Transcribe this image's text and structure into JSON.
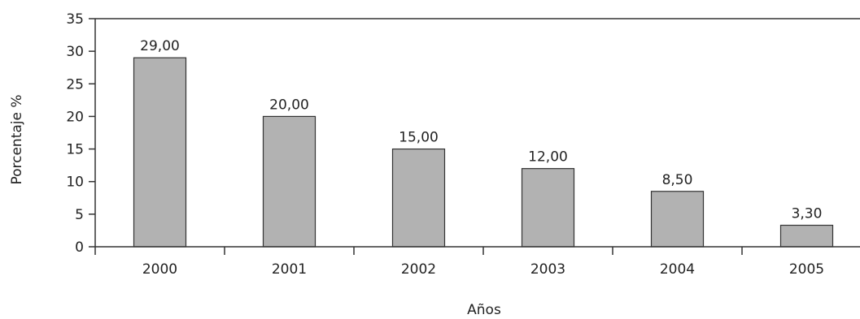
{
  "chart_data": {
    "type": "bar",
    "title": "",
    "xlabel": "Años",
    "ylabel": "Porcentaje %",
    "categories": [
      "2000",
      "2001",
      "2002",
      "2003",
      "2004",
      "2005"
    ],
    "values": [
      29.0,
      20.0,
      15.0,
      12.0,
      8.5,
      3.3
    ],
    "value_labels": [
      "29,00",
      "20,00",
      "15,00",
      "12,00",
      "8,50",
      "3,30"
    ],
    "ylim": [
      0,
      35
    ],
    "yticks": [
      "0",
      "5",
      "10",
      "15",
      "20",
      "25",
      "30",
      "35"
    ],
    "grid": false,
    "legend": "none",
    "bar_color": "#b2b2b2",
    "bar_edge_color": "#333333"
  }
}
